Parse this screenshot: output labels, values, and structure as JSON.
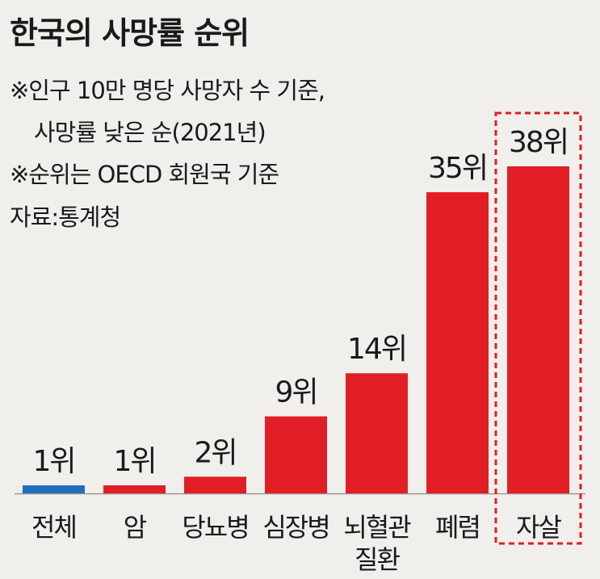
{
  "title": "한국의 사망률 순위",
  "notes": [
    "※인구 10만 명당 사망자 수 기준,",
    "사망률 낮은 순(2021년)",
    "※순위는 OECD 회원국 기준"
  ],
  "source": "자료:통계청",
  "colors": {
    "highlight": "#e11e26",
    "baseline": "#1f6fbf",
    "axis": "#9a9a9a",
    "frame": "#e11e26"
  },
  "chart_data": {
    "type": "bar",
    "categories": [
      "전체",
      "암",
      "당뇨병",
      "심장병",
      "뇌혈관 질환",
      "폐렴",
      "자살"
    ],
    "category_lines": [
      [
        "전체"
      ],
      [
        "암"
      ],
      [
        "당뇨병"
      ],
      [
        "심장병"
      ],
      [
        "뇌혈관",
        "질환"
      ],
      [
        "폐렴"
      ],
      [
        "자살"
      ]
    ],
    "values": [
      1,
      1,
      2,
      9,
      14,
      35,
      38
    ],
    "data_labels": [
      "1위",
      "1위",
      "2위",
      "9위",
      "14위",
      "35위",
      "38위"
    ],
    "bar_colors": [
      "#1f6fbf",
      "#e11e26",
      "#e11e26",
      "#e11e26",
      "#e11e26",
      "#e11e26",
      "#e11e26"
    ],
    "highlighted_category": "자살",
    "ylim": [
      0,
      38
    ],
    "grid": false,
    "legend": "none"
  }
}
